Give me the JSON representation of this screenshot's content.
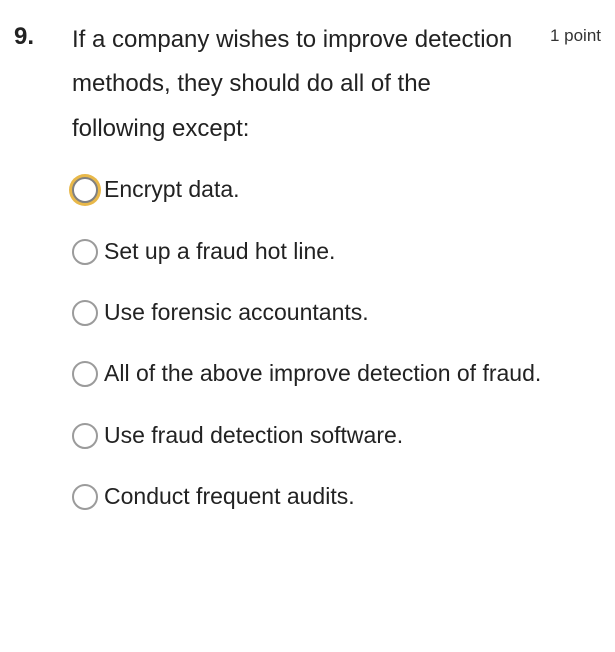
{
  "question": {
    "number": "9.",
    "points_label": "1 point",
    "text": "If a company wishes to improve detection methods, they should do all of the following except:",
    "options": [
      {
        "label": "Encrypt data.",
        "focused": true
      },
      {
        "label": "Set up a fraud hot line.",
        "focused": false
      },
      {
        "label": "Use forensic accountants.",
        "focused": false
      },
      {
        "label": "All of the above improve detection of fraud.",
        "focused": false
      },
      {
        "label": "Use fraud detection software.",
        "focused": false
      },
      {
        "label": "Conduct frequent audits.",
        "focused": false
      }
    ]
  },
  "colors": {
    "text": "#222222",
    "radio_border": "#9b9b9b",
    "focus_ring": "#e8b84a",
    "background": "#ffffff"
  }
}
